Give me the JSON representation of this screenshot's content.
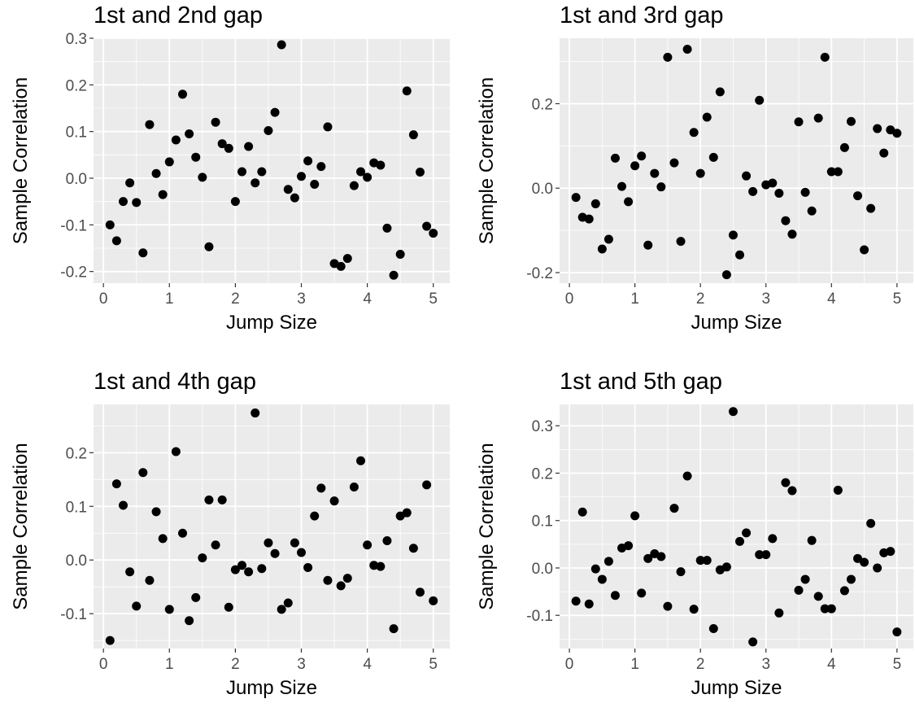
{
  "chart_data": [
    {
      "type": "scatter",
      "title": "1st and 2nd gap",
      "xlabel": "Jump Size",
      "ylabel": "Sample Correlation",
      "xlim": [
        -0.15,
        5.25
      ],
      "ylim": [
        -0.225,
        0.3
      ],
      "xticks": [
        0,
        1,
        2,
        3,
        4,
        5
      ],
      "xtick_labels": [
        "0",
        "1",
        "2",
        "3",
        "4",
        "5"
      ],
      "yticks": [
        -0.2,
        -0.1,
        0.0,
        0.1,
        0.2,
        0.3
      ],
      "ytick_labels": [
        "-0.2",
        "-0.1",
        "0.0",
        "0.1",
        "0.2",
        "0.3"
      ],
      "grid": true,
      "x": [
        0.1,
        0.2,
        0.3,
        0.4,
        0.5,
        0.6,
        0.7,
        0.8,
        0.9,
        1.0,
        1.1,
        1.2,
        1.3,
        1.4,
        1.5,
        1.6,
        1.7,
        1.8,
        1.9,
        2.0,
        2.1,
        2.2,
        2.3,
        2.4,
        2.5,
        2.6,
        2.7,
        2.8,
        2.9,
        3.0,
        3.1,
        3.2,
        3.3,
        3.4,
        3.5,
        3.6,
        3.7,
        3.8,
        3.9,
        4.0,
        4.1,
        4.2,
        4.3,
        4.4,
        4.5,
        4.6,
        4.7,
        4.8,
        4.9,
        5.0
      ],
      "y": [
        -0.1,
        -0.134,
        -0.05,
        -0.01,
        -0.052,
        -0.16,
        0.115,
        0.01,
        -0.035,
        0.035,
        0.082,
        0.18,
        0.095,
        0.045,
        0.002,
        -0.147,
        0.12,
        0.074,
        0.064,
        -0.05,
        0.014,
        0.068,
        -0.01,
        0.014,
        0.102,
        0.141,
        0.286,
        -0.024,
        -0.042,
        0.004,
        0.037,
        -0.013,
        0.025,
        0.11,
        -0.183,
        -0.189,
        -0.172,
        -0.016,
        0.014,
        0.002,
        0.033,
        0.028,
        -0.107,
        -0.208,
        -0.163,
        0.187,
        0.093,
        0.013,
        -0.103,
        -0.118
      ]
    },
    {
      "type": "scatter",
      "title": "1st and 3rd gap",
      "xlabel": "Jump Size",
      "ylabel": "Sample Correlation",
      "xlim": [
        -0.15,
        5.25
      ],
      "ylim": [
        -0.225,
        0.355
      ],
      "xticks": [
        0,
        1,
        2,
        3,
        4,
        5
      ],
      "xtick_labels": [
        "0",
        "1",
        "2",
        "3",
        "4",
        "5"
      ],
      "yticks": [
        -0.2,
        0.0,
        0.2
      ],
      "ytick_labels": [
        "-0.2",
        "0.0",
        "0.2"
      ],
      "grid": true,
      "x": [
        0.1,
        0.2,
        0.3,
        0.4,
        0.5,
        0.6,
        0.7,
        0.8,
        0.9,
        1.0,
        1.1,
        1.2,
        1.3,
        1.4,
        1.5,
        1.6,
        1.7,
        1.8,
        1.9,
        2.0,
        2.1,
        2.2,
        2.3,
        2.4,
        2.5,
        2.6,
        2.7,
        2.8,
        2.9,
        3.0,
        3.1,
        3.2,
        3.3,
        3.4,
        3.5,
        3.6,
        3.7,
        3.8,
        3.9,
        4.0,
        4.1,
        4.2,
        4.3,
        4.4,
        4.5,
        4.6,
        4.7,
        4.8,
        4.9,
        5.0
      ],
      "y": [
        -0.022,
        -0.069,
        -0.073,
        -0.037,
        -0.144,
        -0.121,
        0.071,
        0.004,
        -0.032,
        0.053,
        0.076,
        -0.135,
        0.035,
        0.003,
        0.31,
        0.06,
        -0.126,
        0.329,
        0.132,
        0.035,
        0.168,
        0.073,
        0.228,
        -0.205,
        -0.111,
        -0.158,
        0.029,
        -0.008,
        0.208,
        0.008,
        0.012,
        -0.012,
        -0.077,
        -0.109,
        0.157,
        -0.01,
        -0.054,
        0.166,
        0.31,
        0.039,
        0.039,
        0.096,
        0.158,
        -0.018,
        -0.146,
        -0.048,
        0.141,
        0.083,
        0.138,
        0.13
      ]
    },
    {
      "type": "scatter",
      "title": "1st and 4th gap",
      "xlabel": "Jump Size",
      "ylabel": "Sample Correlation",
      "xlim": [
        -0.15,
        5.25
      ],
      "ylim": [
        -0.165,
        0.29
      ],
      "xticks": [
        0,
        1,
        2,
        3,
        4,
        5
      ],
      "xtick_labels": [
        "0",
        "1",
        "2",
        "3",
        "4",
        "5"
      ],
      "yticks": [
        -0.1,
        0.0,
        0.1,
        0.2
      ],
      "ytick_labels": [
        "-0.1",
        "0.0",
        "0.1",
        "0.2"
      ],
      "grid": true,
      "x": [
        0.1,
        0.2,
        0.3,
        0.4,
        0.5,
        0.6,
        0.7,
        0.8,
        0.9,
        1.0,
        1.1,
        1.2,
        1.3,
        1.4,
        1.5,
        1.6,
        1.7,
        1.8,
        1.9,
        2.0,
        2.1,
        2.2,
        2.3,
        2.4,
        2.5,
        2.6,
        2.7,
        2.8,
        2.9,
        3.0,
        3.1,
        3.2,
        3.3,
        3.4,
        3.5,
        3.6,
        3.7,
        3.8,
        3.9,
        4.0,
        4.1,
        4.2,
        4.3,
        4.4,
        4.5,
        4.6,
        4.7,
        4.8,
        4.9,
        5.0
      ],
      "y": [
        -0.15,
        0.142,
        0.102,
        -0.022,
        -0.086,
        0.163,
        -0.038,
        0.09,
        0.04,
        -0.092,
        0.202,
        0.05,
        -0.113,
        -0.07,
        0.004,
        0.112,
        0.028,
        0.112,
        -0.088,
        -0.018,
        -0.01,
        -0.022,
        0.274,
        -0.016,
        0.032,
        0.012,
        -0.092,
        -0.08,
        0.032,
        0.014,
        -0.014,
        0.082,
        0.134,
        -0.038,
        0.11,
        -0.048,
        -0.034,
        0.136,
        0.185,
        0.028,
        -0.01,
        -0.012,
        0.036,
        -0.128,
        0.082,
        0.088,
        0.022,
        -0.06,
        0.14,
        -0.076
      ]
    },
    {
      "type": "scatter",
      "title": "1st and 5th gap",
      "xlabel": "Jump Size",
      "ylabel": "Sample Correlation",
      "xlim": [
        -0.15,
        5.25
      ],
      "ylim": [
        -0.17,
        0.345
      ],
      "xticks": [
        0,
        1,
        2,
        3,
        4,
        5
      ],
      "xtick_labels": [
        "0",
        "1",
        "2",
        "3",
        "4",
        "5"
      ],
      "yticks": [
        -0.1,
        0.0,
        0.1,
        0.2,
        0.3
      ],
      "ytick_labels": [
        "-0.1",
        "0.0",
        "0.1",
        "0.2",
        "0.3"
      ],
      "grid": true,
      "x": [
        0.1,
        0.2,
        0.3,
        0.4,
        0.5,
        0.6,
        0.7,
        0.8,
        0.9,
        1.0,
        1.1,
        1.2,
        1.3,
        1.4,
        1.5,
        1.6,
        1.7,
        1.8,
        1.9,
        2.0,
        2.1,
        2.2,
        2.3,
        2.4,
        2.5,
        2.6,
        2.7,
        2.8,
        2.9,
        3.0,
        3.1,
        3.2,
        3.3,
        3.4,
        3.5,
        3.6,
        3.7,
        3.8,
        3.9,
        4.0,
        4.1,
        4.2,
        4.3,
        4.4,
        4.5,
        4.6,
        4.7,
        4.8,
        4.9,
        5.0
      ],
      "y": [
        -0.07,
        0.118,
        -0.076,
        -0.002,
        -0.024,
        0.014,
        -0.058,
        0.042,
        0.047,
        0.11,
        -0.053,
        0.02,
        0.03,
        0.024,
        -0.081,
        0.126,
        -0.008,
        0.194,
        -0.087,
        0.016,
        0.016,
        -0.128,
        -0.004,
        0.002,
        0.33,
        0.056,
        0.074,
        -0.156,
        0.028,
        0.028,
        0.062,
        -0.095,
        0.18,
        0.163,
        -0.047,
        -0.024,
        0.058,
        -0.06,
        -0.086,
        -0.086,
        0.164,
        -0.048,
        -0.024,
        0.02,
        0.012,
        0.094,
        0.0,
        0.032,
        0.035,
        -0.135
      ]
    }
  ]
}
